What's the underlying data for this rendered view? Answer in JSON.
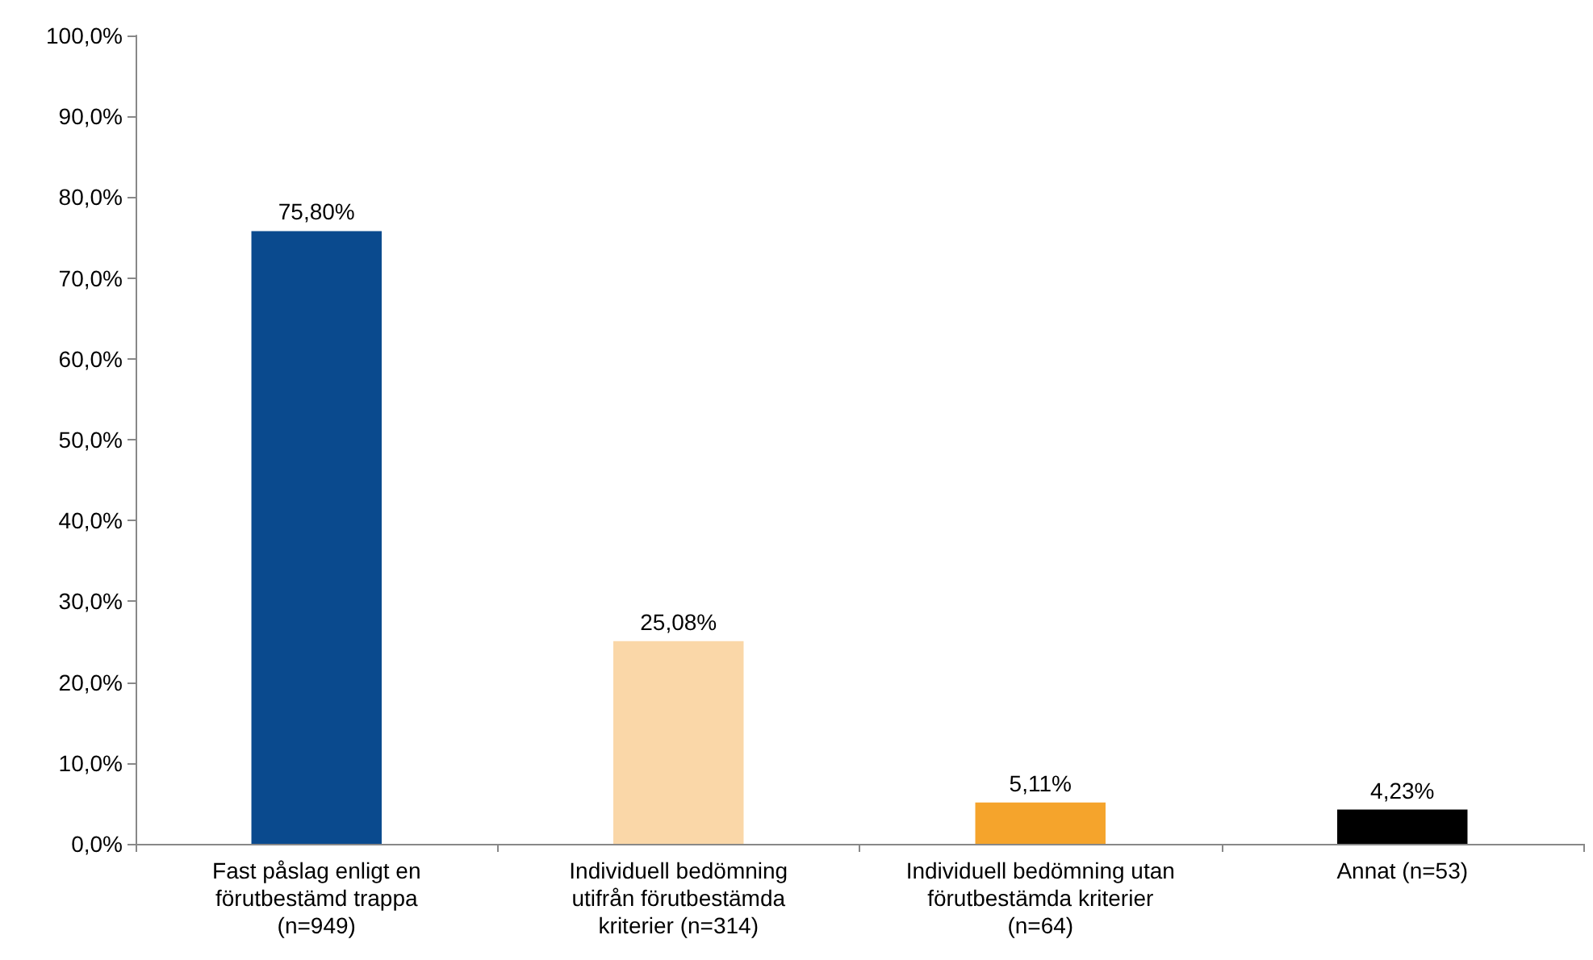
{
  "chart_data": {
    "type": "bar",
    "categories": [
      "Fast påslag enligt en\nförutbestämd trappa\n(n=949)",
      "Individuell bedömning\nutifrån förutbestämda\nkriterier (n=314)",
      "Individuell bedömning utan\nförutbestämda kriterier\n(n=64)",
      "Annat (n=53)"
    ],
    "values": [
      75.8,
      25.08,
      5.11,
      4.23
    ],
    "colors": [
      "#0a4a8e",
      "#fad7a8",
      "#f5a42c",
      "#000000"
    ],
    "value_labels": [
      "75,80%",
      "25,08%",
      "5,11%",
      "4,23%"
    ],
    "ylim": [
      0,
      100
    ],
    "yticks": [
      {
        "value": 0,
        "label": "0,0%"
      },
      {
        "value": 10,
        "label": "10,0%"
      },
      {
        "value": 20,
        "label": "20,0%"
      },
      {
        "value": 30,
        "label": "30,0%"
      },
      {
        "value": 40,
        "label": "40,0%"
      },
      {
        "value": 50,
        "label": "50,0%"
      },
      {
        "value": 60,
        "label": "60,0%"
      },
      {
        "value": 70,
        "label": "70,0%"
      },
      {
        "value": 80,
        "label": "80,0%"
      },
      {
        "value": 90,
        "label": "90,0%"
      },
      {
        "value": 100,
        "label": "100,0%"
      }
    ],
    "grid": false
  }
}
